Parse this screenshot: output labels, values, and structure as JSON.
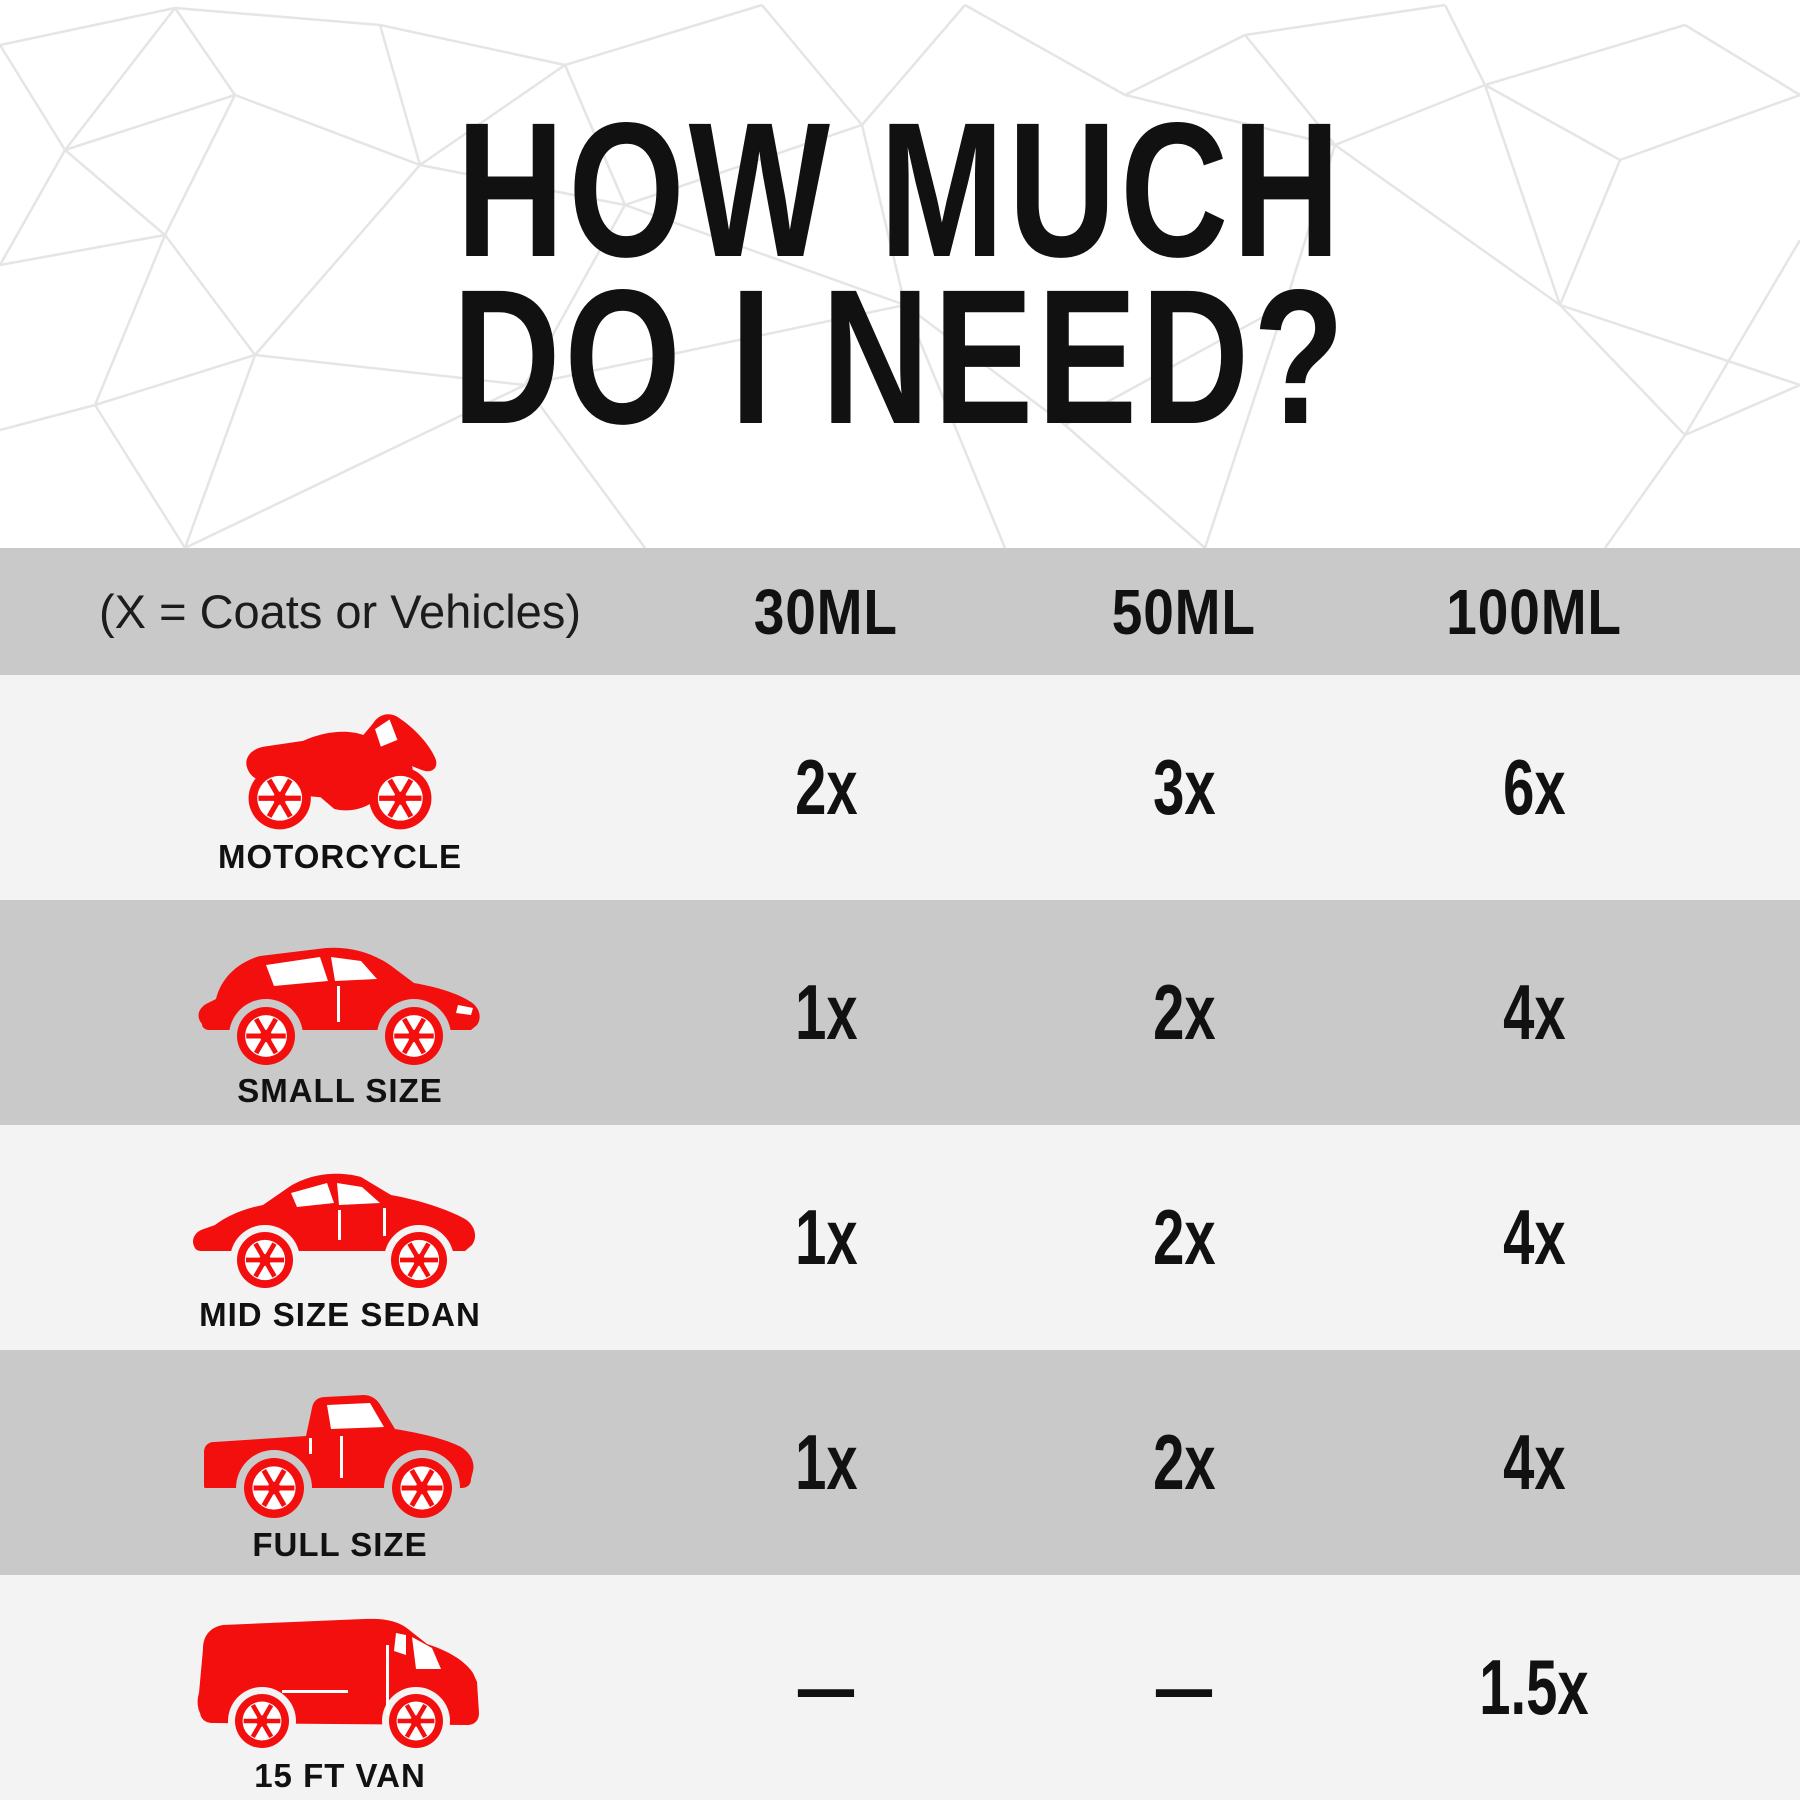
{
  "title": {
    "line1": "HOW MUCH",
    "line2": "DO I NEED?"
  },
  "table": {
    "header": {
      "legend": "(X = Coats or Vehicles)",
      "columns": [
        "30ML",
        "50ML",
        "100ML"
      ]
    },
    "rows": [
      {
        "icon": "motorcycle-icon",
        "label": "MOTORCYCLE",
        "values": [
          "2x",
          "3x",
          "6x"
        ]
      },
      {
        "icon": "small-car-icon",
        "label": "SMALL SIZE",
        "values": [
          "1x",
          "2x",
          "4x"
        ]
      },
      {
        "icon": "sedan-icon",
        "label": "MID SIZE SEDAN",
        "values": [
          "1x",
          "2x",
          "4x"
        ]
      },
      {
        "icon": "pickup-truck-icon",
        "label": "FULL SIZE",
        "values": [
          "1x",
          "2x",
          "4x"
        ]
      },
      {
        "icon": "van-icon",
        "label": "15 FT VAN",
        "values": [
          "—",
          "—",
          "1.5x"
        ]
      }
    ]
  },
  "colors": {
    "accent_red": "#f40f0f",
    "row_light": "#f3f3f3",
    "row_dark": "#c9c9c9",
    "text": "#111111",
    "mesh_line": "#e5e5e5"
  }
}
